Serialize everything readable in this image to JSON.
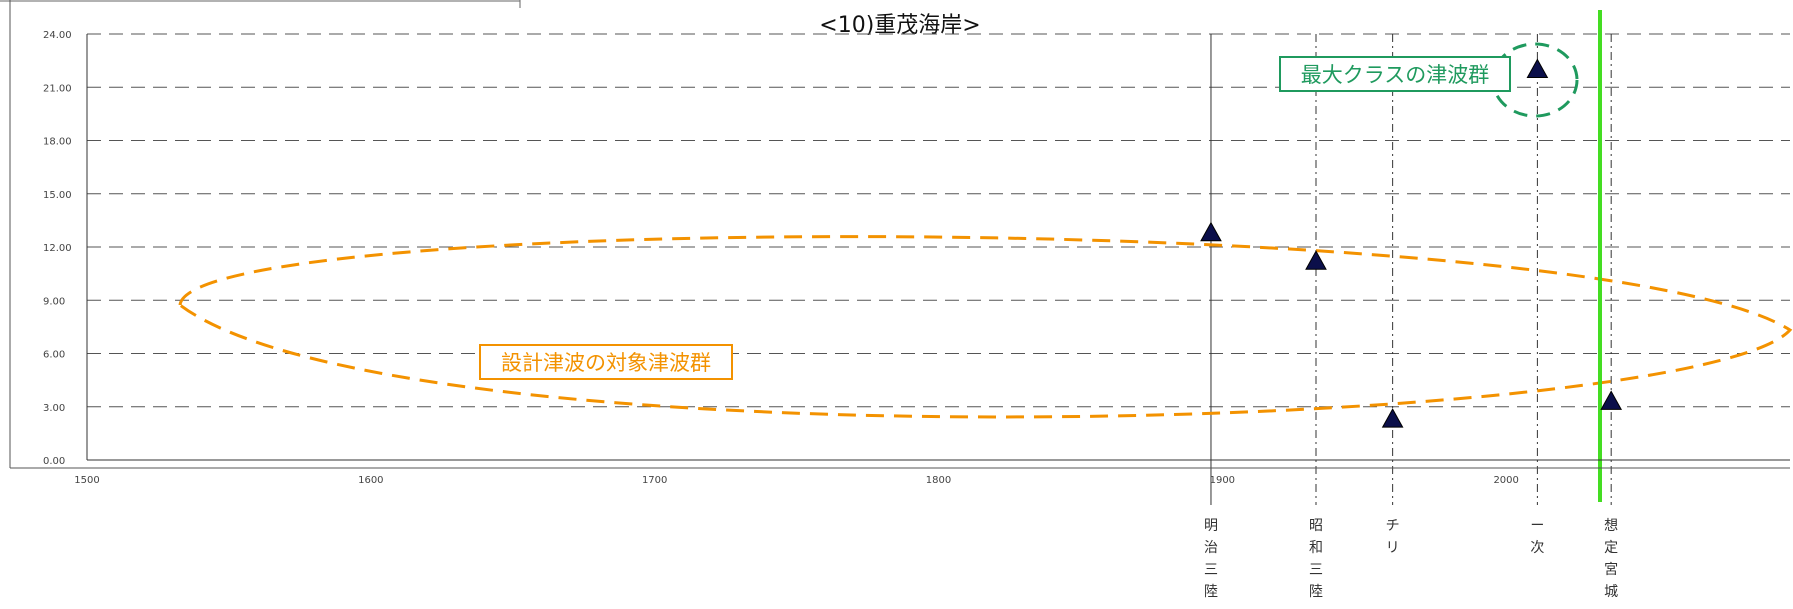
{
  "chart_data": {
    "type": "scatter",
    "title": "<10)重茂海岸>",
    "ylabel": "",
    "xlabel": "",
    "xlim": [
      1500,
      2100
    ],
    "ylim": [
      0,
      24
    ],
    "x_ticks": [
      "1500",
      "1600",
      "1700",
      "1800",
      "1900",
      "2000"
    ],
    "y_ticks": [
      "0.00",
      "3.00",
      "6.00",
      "9.00",
      "12.00",
      "15.00",
      "18.00",
      "21.00",
      "24.00"
    ],
    "grid": true,
    "series": [
      {
        "points": [
          {
            "x": 1896,
            "y": 12.8
          },
          {
            "x": 1933,
            "y": 11.2
          },
          {
            "x": 1960,
            "y": 2.3
          },
          {
            "x": 2011,
            "y": 22.0
          },
          {
            "x": 2037,
            "y": 3.3
          }
        ]
      }
    ],
    "event_lines": [
      {
        "x": 1896,
        "label": "明治三陸",
        "style": "solid"
      },
      {
        "x": 1933,
        "label": "昭和三陸",
        "style": "dashed"
      },
      {
        "x": 1960,
        "label": "チリ",
        "style": "dashed"
      },
      {
        "x": 2011,
        "label": "ー次",
        "style": "dashed"
      },
      {
        "x": 2037,
        "label": "想定宮城",
        "style": "dashed"
      }
    ],
    "annotations": {
      "design_group": {
        "text": "設計津波の対象津波群",
        "color": "#f39200"
      },
      "max_group": {
        "text": "最大クラスの津波群",
        "color": "#1f9a5e"
      }
    },
    "colors": {
      "marker": "#0b0f4a",
      "grid": "#555555",
      "separator": "#44dd22",
      "design_group": "#f39200",
      "max_group": "#1f9a5e"
    }
  }
}
